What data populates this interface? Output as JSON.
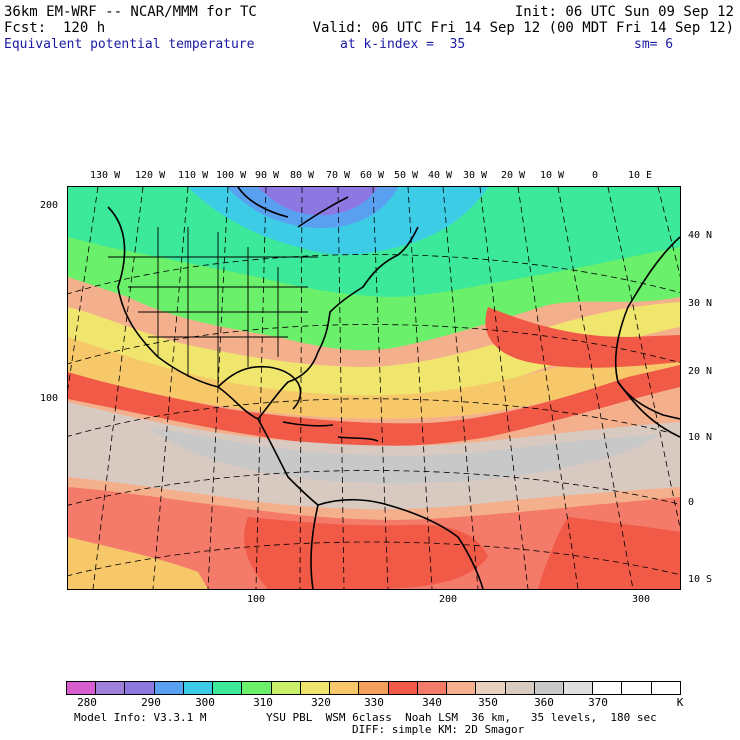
{
  "header": {
    "line1_left": "36km EM-WRF -- NCAR/MMM for TC",
    "line1_right": "Init: 06 UTC Sun 09 Sep 12",
    "line2_left": "Fcst:  120 h",
    "line2_right": "Valid: 06 UTC Fri 14 Sep 12 (00 MDT Fri 14 Sep 12)",
    "field": "Equivalent potential temperature",
    "kindex": "at k-index =  35",
    "smooth": "sm= 6"
  },
  "map": {
    "top_lon_labels": [
      "130 W",
      "120 W",
      "110 W",
      "100 W",
      "90 W",
      "80 W",
      "70 W",
      "60 W",
      "50 W",
      "40 W",
      "30 W",
      "20 W",
      "10 W",
      "0",
      "10 E"
    ],
    "right_lat_labels": [
      "40 N",
      "30 N",
      "20 N",
      "10 N",
      "0",
      "10 S"
    ],
    "left_grid_labels": [
      "200",
      "100"
    ],
    "bottom_grid_labels": [
      "100",
      "200",
      "300"
    ],
    "colors": {
      "land_border": "#000000",
      "graticule": "#000000"
    }
  },
  "legend": {
    "colors": [
      "#d85fd0",
      "#a080d8",
      "#8c78e0",
      "#5aa0f0",
      "#3ccce6",
      "#3ce89a",
      "#6af06a",
      "#c8f06a",
      "#f0e66e",
      "#f6c86a",
      "#f4a05a",
      "#f05a46",
      "#f47a6a",
      "#f4b08c",
      "#e8d0bc",
      "#d8cac0",
      "#c8c8c8",
      "#e0e0e0",
      "#ffffff",
      "#ffffff",
      "#ffffff"
    ],
    "tick_labels": [
      "280",
      "290",
      "300",
      "310",
      "320",
      "330",
      "340",
      "350",
      "360",
      "370"
    ],
    "unit": "K"
  },
  "footer": {
    "model_info": "Model Info: V3.3.1 M",
    "physics_1": "YSU PBL  WSM 6class  Noah LSM  36 km,   35 levels,  180 sec",
    "physics_2": "DIFF: simple KM: 2D Smagor"
  }
}
